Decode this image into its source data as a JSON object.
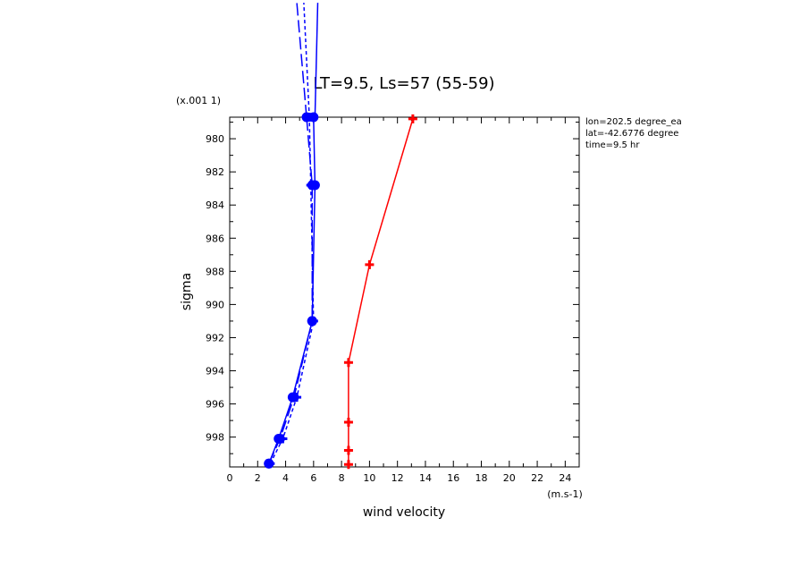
{
  "chart_data": {
    "type": "line",
    "title": "LT=9.5, Ls=57 (55-59)",
    "xlabel": "wind velocity",
    "ylabel": "sigma",
    "x_unit_label": "(m.s-1)",
    "y_scale_label": "(x.001 1)",
    "xlim": [
      0,
      25
    ],
    "ylim": [
      999.8,
      978.7
    ],
    "x_ticks": [
      "0",
      "2",
      "4",
      "6",
      "8",
      "10",
      "12",
      "14",
      "16",
      "18",
      "20",
      "22",
      "24"
    ],
    "y_ticks": [
      "980",
      "982",
      "984",
      "986",
      "988",
      "990",
      "992",
      "994",
      "996",
      "998"
    ],
    "annotations": [
      "lon=202.5 degree_ea",
      "lat=-42.6776 degree",
      "time=9.5 hr"
    ],
    "grid": false,
    "legend": "none",
    "series": [
      {
        "style": "solid",
        "color": "#0000ff",
        "marker": "circle",
        "points": [
          [
            2.8,
            999.6
          ],
          [
            3.5,
            998.1
          ],
          [
            4.5,
            995.6
          ],
          [
            5.9,
            991.0
          ],
          [
            6.1,
            982.8
          ],
          [
            6.0,
            978.7
          ]
        ]
      },
      {
        "style": "dashed",
        "color": "#0000ff",
        "marker": "circle",
        "points": [
          [
            2.8,
            999.6
          ],
          [
            3.6,
            998.1
          ],
          [
            4.6,
            995.6
          ],
          [
            5.9,
            991.0
          ],
          [
            5.9,
            982.8
          ],
          [
            5.5,
            978.7
          ]
        ]
      },
      {
        "style": "dotted",
        "color": "#0000ff",
        "marker": "plus",
        "points": [
          [
            2.9,
            999.6
          ],
          [
            3.8,
            998.1
          ],
          [
            4.8,
            995.6
          ],
          [
            6.0,
            991.0
          ],
          [
            5.8,
            982.8
          ],
          [
            5.7,
            978.7
          ]
        ]
      },
      {
        "style": "solid",
        "color": "#ff0000",
        "marker": "plus",
        "points": [
          [
            8.5,
            999.65
          ],
          [
            8.5,
            998.8
          ],
          [
            8.5,
            997.1
          ],
          [
            8.5,
            993.5
          ],
          [
            10.0,
            987.6
          ],
          [
            13.1,
            978.8
          ]
        ]
      }
    ],
    "offscale_traces": [
      {
        "style": "solid",
        "color": "#0000ff",
        "points": [
          [
            6.1,
            978.7
          ],
          [
            6.3,
            971.8
          ]
        ]
      },
      {
        "style": "dashed",
        "color": "#0000ff",
        "points": [
          [
            5.5,
            978.7
          ],
          [
            4.8,
            971.8
          ]
        ]
      },
      {
        "style": "dotted",
        "color": "#0000ff",
        "points": [
          [
            5.7,
            978.7
          ],
          [
            5.3,
            971.8
          ]
        ]
      }
    ]
  }
}
